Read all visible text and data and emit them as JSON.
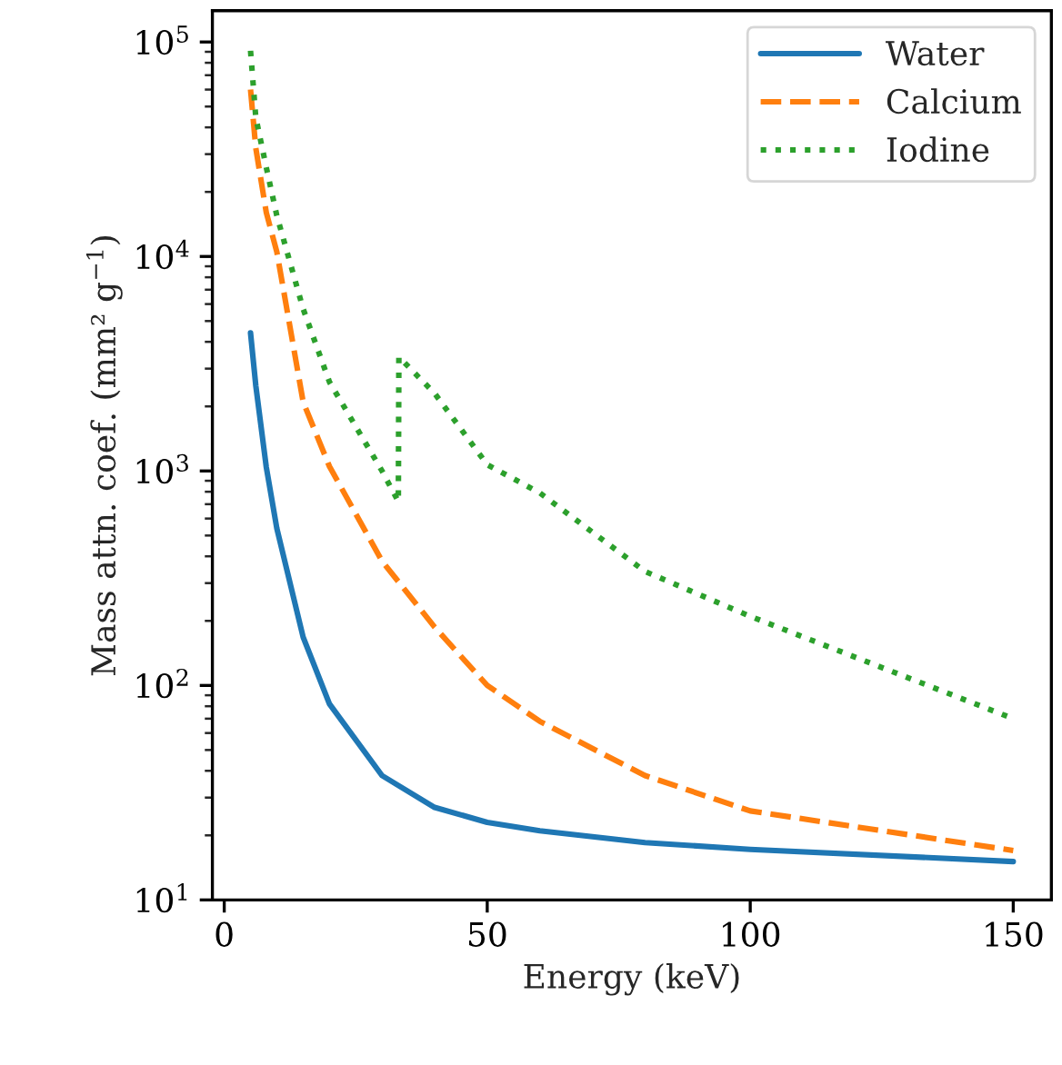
{
  "chart_data": {
    "type": "line",
    "xlabel": "Energy (keV)",
    "ylabel": "Mass attn. coef. (mm² g$^{−1}$)",
    "log": "y",
    "xlim": [
      -2.25,
      157.25
    ],
    "xticks": [
      0,
      50,
      100,
      150
    ],
    "ylim": [
      10,
      140000
    ],
    "yticks": [
      {
        "value": 10,
        "label": "10$^{1}$"
      },
      {
        "value": 100,
        "label": "10$^{2}$"
      },
      {
        "value": 1000,
        "label": "10$^{3}$"
      },
      {
        "value": 10000,
        "label": "10$^{4}$"
      },
      {
        "value": 100000,
        "label": "10$^{5}$"
      }
    ],
    "grid": false,
    "legend": "top right",
    "marker": "none",
    "series": [
      {
        "name": "Water",
        "color": "#1f77b4",
        "line_style": "solid",
        "x": [
          5,
          6,
          8,
          10,
          15,
          20,
          30,
          40,
          50,
          60,
          80,
          100,
          150
        ],
        "values": [
          4400,
          2500,
          1040,
          540,
          168,
          82,
          38,
          27,
          23,
          21,
          18.5,
          17.2,
          15.1
        ]
      },
      {
        "name": "Calcium",
        "color": "#ff7f0e",
        "line_style": "dashed",
        "x": [
          5,
          6,
          8,
          10,
          15,
          20,
          30,
          40,
          50,
          60,
          80,
          100,
          150
        ],
        "values": [
          60000,
          32000,
          16000,
          10500,
          2100,
          1050,
          380,
          187,
          100,
          68,
          38,
          26,
          17
        ]
      },
      {
        "name": "Iodine",
        "color": "#2ca02c",
        "line_style": "dotted",
        "x": [
          5,
          6,
          8,
          10,
          15,
          20,
          30,
          33.1,
          33.2,
          40,
          50,
          60,
          80,
          100,
          150
        ],
        "values": [
          91000,
          44500,
          26000,
          15500,
          5700,
          2600,
          1000,
          720,
          3400,
          2300,
          1070,
          790,
          340,
          210,
          70
        ]
      }
    ]
  }
}
